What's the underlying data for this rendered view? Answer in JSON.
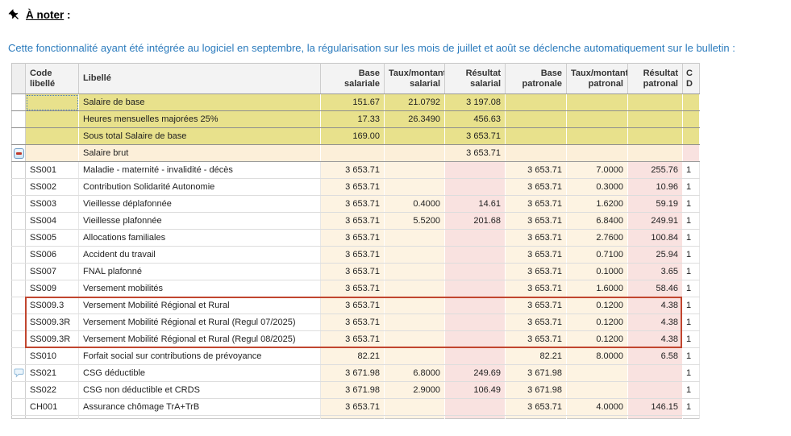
{
  "note": {
    "title": "À noter",
    "colon": " :",
    "body": "Cette fonctionnalité ayant été intégrée au logiciel en septembre, la régularisation sur les mois de juillet et août se déclenche automatiquement sur le bulletin :"
  },
  "table": {
    "headers": {
      "code": "Code libellé",
      "libelle": "Libellé",
      "base_sal": "Base salariale",
      "taux_sal": "Taux/montant salarial",
      "res_sal": "Résultat salarial",
      "base_pat": "Base patronale",
      "taux_pat": "Taux/montant patronal",
      "res_pat": "Résultat patronal",
      "cd1": "C",
      "cd2": "D"
    },
    "rows": [
      {
        "type": "yellow",
        "icon": "",
        "selected": true,
        "code": "",
        "lib": "Salaire de base",
        "bs": "151.67",
        "ts": "21.0792",
        "rs": "3 197.08",
        "bp": "",
        "tp": "",
        "rp": "",
        "cd": ""
      },
      {
        "type": "yellow",
        "icon": "",
        "code": "",
        "lib": "Heures mensuelles majorées 25%",
        "bs": "17.33",
        "ts": "26.3490",
        "rs": "456.63",
        "bp": "",
        "tp": "",
        "rp": "",
        "cd": ""
      },
      {
        "type": "yellow",
        "icon": "",
        "code": "",
        "lib": "Sous total Salaire de base",
        "bs": "169.00",
        "ts": "",
        "rs": "3 653.71",
        "bp": "",
        "tp": "",
        "rp": "",
        "cd": ""
      },
      {
        "type": "brut",
        "icon": "minus",
        "code": "",
        "lib": "Salaire brut",
        "bs": "",
        "ts": "",
        "rs": "3 653.71",
        "bp": "",
        "tp": "",
        "rp": "",
        "cd": ""
      },
      {
        "type": "data",
        "icon": "",
        "code": "SS001",
        "lib": "Maladie - maternité - invalidité - décès",
        "bs": "3 653.71",
        "ts": "",
        "rs": "",
        "bp": "3 653.71",
        "tp": "7.0000",
        "rp": "255.76",
        "cd": "1"
      },
      {
        "type": "data",
        "icon": "",
        "code": "SS002",
        "lib": "Contribution Solidarité Autonomie",
        "bs": "3 653.71",
        "ts": "",
        "rs": "",
        "bp": "3 653.71",
        "tp": "0.3000",
        "rp": "10.96",
        "cd": "1"
      },
      {
        "type": "data",
        "icon": "",
        "code": "SS003",
        "lib": "Vieillesse déplafonnée",
        "bs": "3 653.71",
        "ts": "0.4000",
        "rs": "14.61",
        "bp": "3 653.71",
        "tp": "1.6200",
        "rp": "59.19",
        "cd": "1"
      },
      {
        "type": "data",
        "icon": "",
        "code": "SS004",
        "lib": "Vieillesse plafonnée",
        "bs": "3 653.71",
        "ts": "5.5200",
        "rs": "201.68",
        "bp": "3 653.71",
        "tp": "6.8400",
        "rp": "249.91",
        "cd": "1"
      },
      {
        "type": "data",
        "icon": "",
        "code": "SS005",
        "lib": "Allocations familiales",
        "bs": "3 653.71",
        "ts": "",
        "rs": "",
        "bp": "3 653.71",
        "tp": "2.7600",
        "rp": "100.84",
        "cd": "1"
      },
      {
        "type": "data",
        "icon": "",
        "code": "SS006",
        "lib": "Accident du travail",
        "bs": "3 653.71",
        "ts": "",
        "rs": "",
        "bp": "3 653.71",
        "tp": "0.7100",
        "rp": "25.94",
        "cd": "1"
      },
      {
        "type": "data",
        "icon": "",
        "code": "SS007",
        "lib": "FNAL plafonné",
        "bs": "3 653.71",
        "ts": "",
        "rs": "",
        "bp": "3 653.71",
        "tp": "0.1000",
        "rp": "3.65",
        "cd": "1"
      },
      {
        "type": "data",
        "icon": "",
        "code": "SS009",
        "lib": "Versement mobilités",
        "bs": "3 653.71",
        "ts": "",
        "rs": "",
        "bp": "3 653.71",
        "tp": "1.6000",
        "rp": "58.46",
        "cd": "1"
      },
      {
        "type": "data",
        "icon": "",
        "code": "SS009.3",
        "lib": "Versement Mobilité Régional et Rural",
        "bs": "3 653.71",
        "ts": "",
        "rs": "",
        "bp": "3 653.71",
        "tp": "0.1200",
        "rp": "4.38",
        "cd": "1"
      },
      {
        "type": "data",
        "icon": "",
        "code": "SS009.3R",
        "lib": "Versement Mobilité Régional et Rural  (Regul 07/2025)",
        "bs": "3 653.71",
        "ts": "",
        "rs": "",
        "bp": "3 653.71",
        "tp": "0.1200",
        "rp": "4.38",
        "cd": "1"
      },
      {
        "type": "data",
        "icon": "",
        "code": "SS009.3R",
        "lib": "Versement Mobilité Régional et Rural  (Regul 08/2025)",
        "bs": "3 653.71",
        "ts": "",
        "rs": "",
        "bp": "3 653.71",
        "tp": "0.1200",
        "rp": "4.38",
        "cd": "1"
      },
      {
        "type": "data",
        "icon": "",
        "code": "SS010",
        "lib": "Forfait social sur contributions de prévoyance",
        "bs": "82.21",
        "ts": "",
        "rs": "",
        "bp": "82.21",
        "tp": "8.0000",
        "rp": "6.58",
        "cd": "1"
      },
      {
        "type": "data",
        "icon": "comment",
        "code": "SS021",
        "lib": "CSG déductible",
        "bs": "3 671.98",
        "ts": "6.8000",
        "rs": "249.69",
        "bp": "3 671.98",
        "tp": "",
        "rp": "",
        "cd": "1"
      },
      {
        "type": "data",
        "icon": "",
        "code": "SS022",
        "lib": "CSG non déductible et CRDS",
        "bs": "3 671.98",
        "ts": "2.9000",
        "rs": "106.49",
        "bp": "3 671.98",
        "tp": "",
        "rp": "",
        "cd": "1"
      },
      {
        "type": "data",
        "icon": "",
        "code": "CH001",
        "lib": "Assurance chômage TrA+TrB",
        "bs": "3 653.71",
        "ts": "",
        "rs": "",
        "bp": "3 653.71",
        "tp": "4.0000",
        "rp": "146.15",
        "cd": "1"
      },
      {
        "type": "stub",
        "icon": "",
        "code": "",
        "lib": "",
        "bs": "",
        "ts": "",
        "rs": "",
        "bp": "",
        "tp": "",
        "rp": "",
        "cd": ""
      }
    ]
  },
  "colors": {
    "note_blue": "#2b7bbd",
    "yellow_row": "#e8e18c",
    "brut_row": "#fcefd9",
    "cream_cell": "#fdf3e2",
    "pink_cell": "#f9e2e0",
    "highlight_border": "#c1462f"
  }
}
